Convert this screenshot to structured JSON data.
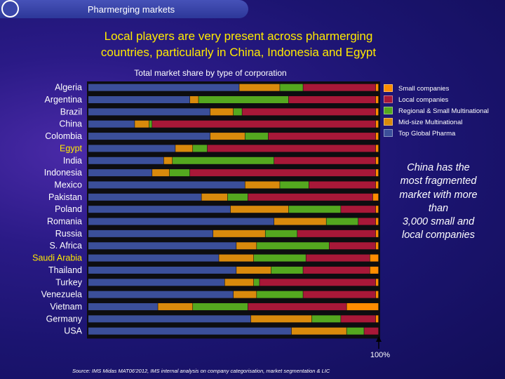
{
  "header": {
    "title": "Pharmerging markets"
  },
  "slide": {
    "title_line1": "Local players are very present across pharmerging",
    "title_line2": "countries, particularly in China, Indonesia and Egypt"
  },
  "callout": {
    "line1": "China has the",
    "line2": "most fragmented",
    "line3": "market with more",
    "line4": "than",
    "line5": "3,000 small and",
    "line6": "local companies"
  },
  "arrow_label": "100%",
  "source": "Source: IMS Midas MAT06'2012, IMS internal analysis on company categorisation, market segmentation & LIC",
  "colors": {
    "top_global": "#3b4f9a",
    "mid_size": "#d98a0c",
    "regional": "#54a81f",
    "local": "#a81838",
    "small": "#ff8c00",
    "chart_bg": "#0d0d10",
    "highlight_label": "#ffea00"
  },
  "chart_data": {
    "type": "bar",
    "orientation": "horizontal",
    "stacked": true,
    "title": "Total market share by type of corporation",
    "xlim": [
      0,
      100
    ],
    "xunit": "%",
    "categories": [
      "Algeria",
      "Argentina",
      "Brazil",
      "China",
      "Colombia",
      "Egypt",
      "India",
      "Indonesia",
      "Mexico",
      "Pakistan",
      "Poland",
      "Romania",
      "Russia",
      "S. Africa",
      "Saudi Arabia",
      "Thailand",
      "Turkey",
      "Venezuela",
      "Vietnam",
      "Germany",
      "USA"
    ],
    "highlighted": [
      "Egypt",
      "Saudi Arabia"
    ],
    "series": [
      {
        "name": "Top Global Pharma",
        "color_key": "top_global",
        "values": [
          52,
          35,
          42,
          16,
          42,
          30,
          26,
          22,
          54,
          39,
          49,
          64,
          43,
          51,
          45,
          51,
          47,
          50,
          24,
          56,
          70
        ]
      },
      {
        "name": "Mid-size Multinational",
        "color_key": "mid_size",
        "values": [
          14,
          3,
          8,
          5,
          12,
          6,
          3,
          6,
          12,
          9,
          20,
          18,
          18,
          7,
          12,
          12,
          10,
          8,
          12,
          21,
          19
        ]
      },
      {
        "name": "Regional & Small Multinational",
        "color_key": "regional",
        "values": [
          8,
          31,
          3,
          1,
          8,
          5,
          35,
          7,
          10,
          7,
          18,
          11,
          11,
          25,
          18,
          11,
          2,
          16,
          19,
          10,
          6
        ]
      },
      {
        "name": "Local companies",
        "color_key": "local",
        "values": [
          25,
          30,
          46,
          77,
          37,
          58,
          35,
          64,
          23,
          43,
          12,
          6,
          27,
          16,
          22,
          23,
          40,
          25,
          34,
          12,
          5
        ]
      },
      {
        "name": "Small companies",
        "color_key": "small",
        "values": [
          1,
          1,
          1,
          1,
          1,
          1,
          1,
          1,
          1,
          2,
          1,
          1,
          1,
          1,
          3,
          3,
          1,
          1,
          11,
          1,
          0
        ]
      }
    ],
    "legend_order": [
      "Small companies",
      "Local companies",
      "Regional & Small Multinational",
      "Mid-size Multinational",
      "Top Global Pharma"
    ],
    "legend_position": "right"
  }
}
